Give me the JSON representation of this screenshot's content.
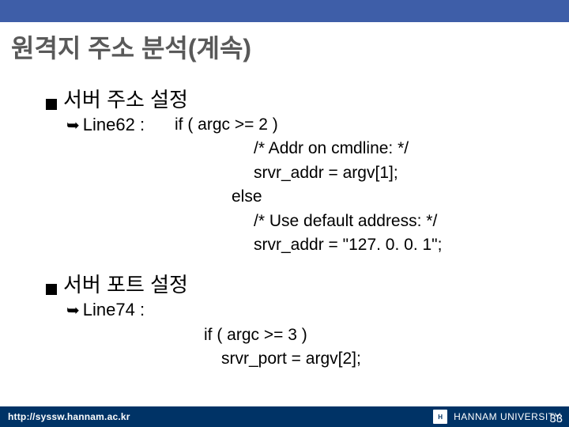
{
  "colors": {
    "topbar": "#3e5ea8",
    "footer_bg": "#003366",
    "title_color": "#595959",
    "text_color": "#000000",
    "footer_text": "#ffffff"
  },
  "title": "원격지 주소 분석(계속)",
  "sections": [
    {
      "heading": "서버 주소 설정",
      "line_label": "Line62 :",
      "code": {
        "l1": "if ( argc >= 2 )",
        "l2": "/* Addr on cmdline: */",
        "l3": "srvr_addr = argv[1];",
        "l4": "else",
        "l5": "/* Use default address: */",
        "l6": "srvr_addr = \"127. 0. 0. 1\";"
      }
    },
    {
      "heading": "서버 포트 설정",
      "line_label": "Line74 :",
      "code": {
        "l1": "if ( argc >= 3 )",
        "l2": "srvr_port = argv[2];"
      }
    }
  ],
  "footer": {
    "url": "http://syssw.hannam.ac.kr",
    "university": "HANNAM  UNIVERSITY",
    "logo_text": "H",
    "page": "33"
  }
}
